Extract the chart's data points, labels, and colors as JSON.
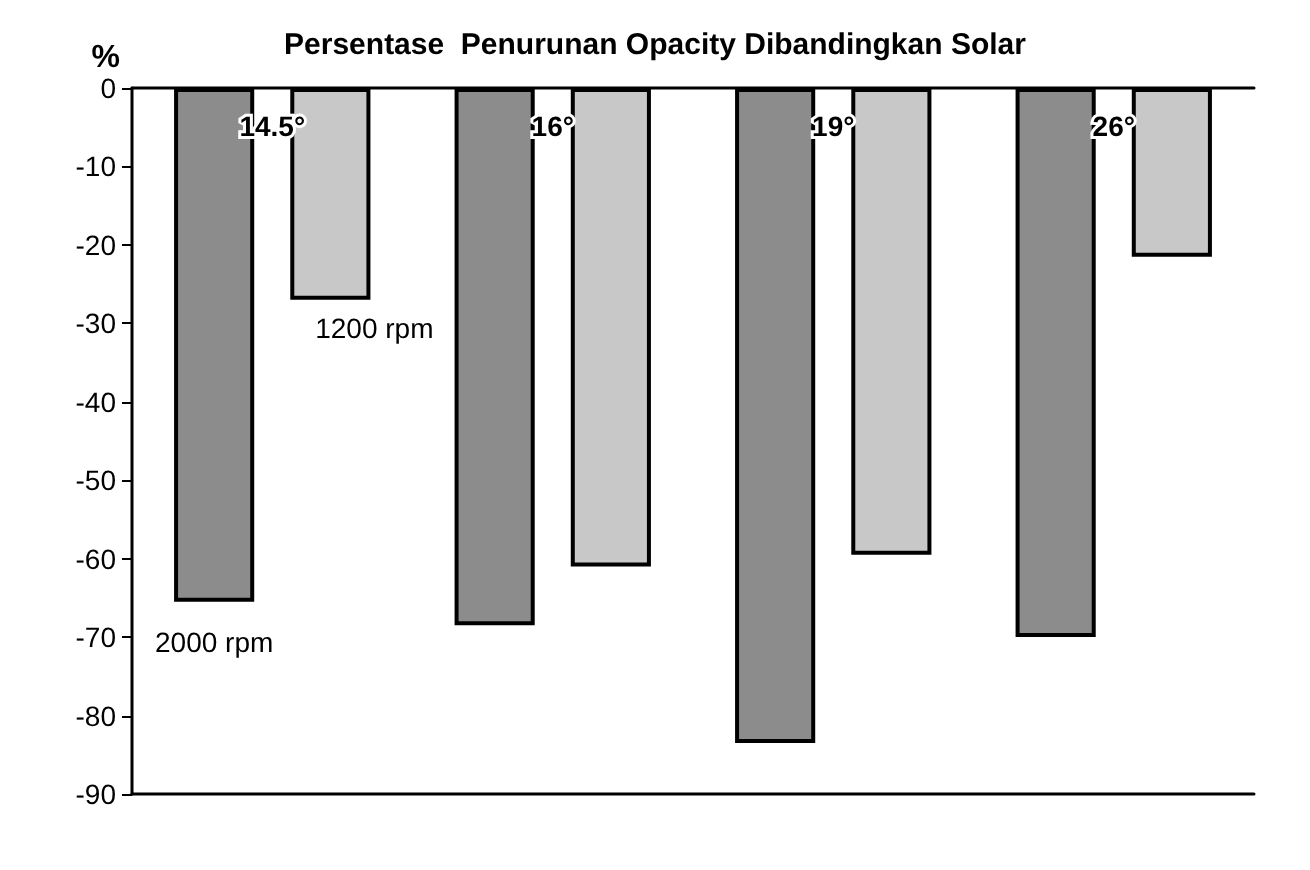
{
  "chart_data": {
    "type": "bar",
    "title": "Persentase  Penurunan Opacity Dibandingkan Solar",
    "ylabel": "%",
    "categories": [
      "14.5°",
      "16°",
      "19°",
      "26°"
    ],
    "series": [
      {
        "name": "2000 rpm",
        "color": "#8c8c8c",
        "values": [
          -65.5,
          -68.5,
          -83.5,
          -70
        ]
      },
      {
        "name": "1200 rpm",
        "color": "#c8c8c8",
        "values": [
          -27,
          -61,
          -59.5,
          -21.5
        ]
      }
    ],
    "ylim": [
      -90,
      0
    ],
    "yticks": [
      -90,
      -80,
      -70,
      -60,
      -50,
      -40,
      -30,
      -20,
      -10,
      0
    ],
    "grid": false,
    "legend": false
  }
}
